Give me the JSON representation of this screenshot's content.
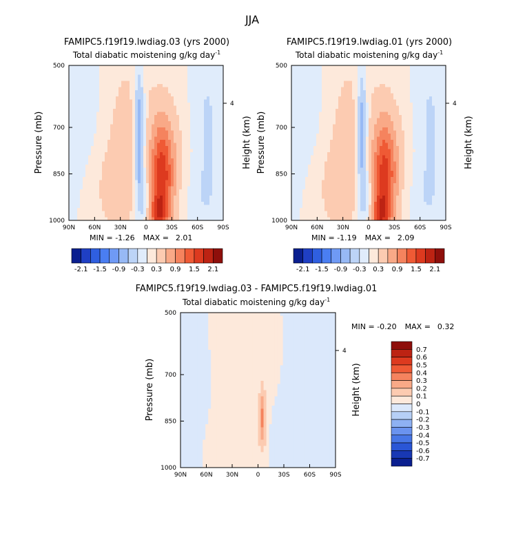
{
  "figure_title": "JJA",
  "colorbar_top": [
    "-2.1",
    "-1.5",
    "-0.9",
    "-0.3",
    "0.3",
    "0.9",
    "1.5",
    "2.1"
  ],
  "colorbar_diff": [
    "0.7",
    "0.6",
    "0.5",
    "0.4",
    "0.3",
    "0.2",
    "0.1",
    "0",
    "-0.1",
    "-0.2",
    "-0.3",
    "-0.4",
    "-0.5",
    "-0.6",
    "-0.7"
  ],
  "colors": {
    "top_scale": [
      "#0a1f8f",
      "#1f3fc4",
      "#2f5fe0",
      "#4a7ef2",
      "#6f9af5",
      "#97b9f5",
      "#bcd4f7",
      "#e0ecfb",
      "#fde9db",
      "#fccbb1",
      "#f9a987",
      "#f5835e",
      "#ef5a35",
      "#dd3a1f",
      "#bd2313",
      "#8e0f0b"
    ],
    "diff_scale": [
      "#8e0f0b",
      "#bd2313",
      "#dd3a1f",
      "#ef5a35",
      "#f5835e",
      "#f9a987",
      "#fccbb1",
      "#fde9db",
      "#dbe8fb",
      "#b6cff6",
      "#8eb1f3",
      "#6a93ef",
      "#4776e6",
      "#2a56d6",
      "#1838b4",
      "#0a1f8f"
    ]
  },
  "chart_data": [
    {
      "type": "heatmap",
      "title": "FAMIPC5.f19f19.lwdiag.03 (yrs 2000)",
      "subtitle_left": "Total diabatic moistening",
      "subtitle_right": "g/kg day",
      "subtitle_sup": "-1",
      "xlabel": "",
      "ylabel": "Pressure (mb)",
      "ylabel_right": "Height (km)",
      "x_ticks": [
        "90N",
        "60N",
        "30N",
        "0",
        "30S",
        "60S",
        "90S"
      ],
      "x_range": [
        90,
        -90
      ],
      "y_ticks": [
        "500",
        "700",
        "850",
        "1000"
      ],
      "y_range": [
        500,
        1000
      ],
      "right_ticks": [
        "4"
      ],
      "min_label": "MIN =",
      "min_value": "-1.26",
      "max_label": "MAX =",
      "max_value": "2.01",
      "blobs": [
        {
          "lat": 8,
          "p": 720,
          "slat": 4.5,
          "sp": 150,
          "v": -1.26
        },
        {
          "lat": 4,
          "p": 930,
          "slat": 5,
          "sp": 60,
          "v": -0.5
        },
        {
          "lat": -18,
          "p": 860,
          "slat": 9,
          "sp": 120,
          "v": 1.3
        },
        {
          "lat": -14,
          "p": 985,
          "slat": 7,
          "sp": 45,
          "v": 0.9
        },
        {
          "lat": -30,
          "p": 880,
          "slat": 18,
          "sp": 150,
          "v": 0.5
        },
        {
          "lat": 25,
          "p": 780,
          "slat": 18,
          "sp": 220,
          "v": 0.45
        },
        {
          "lat": 45,
          "p": 900,
          "slat": 15,
          "sp": 100,
          "v": 0.25
        },
        {
          "lat": -15,
          "p": 620,
          "slat": 25,
          "sp": 140,
          "v": 0.2
        },
        {
          "lat": -70,
          "p": 700,
          "slat": 15,
          "sp": 250,
          "v": -0.35
        },
        {
          "lat": -52,
          "p": 930,
          "slat": 20,
          "sp": 80,
          "v": -0.2
        },
        {
          "lat": 75,
          "p": 640,
          "slat": 20,
          "sp": 160,
          "v": -0.15
        }
      ]
    },
    {
      "type": "heatmap",
      "title": "FAMIPC5.f19f19.lwdiag.01 (yrs 2000)",
      "subtitle_left": "Total diabatic moistening",
      "subtitle_right": "g/kg day",
      "subtitle_sup": "-1",
      "xlabel": "",
      "ylabel": "Pressure (mb)",
      "ylabel_right": "Height (km)",
      "x_ticks": [
        "90N",
        "60N",
        "30N",
        "0",
        "30S",
        "60S",
        "90S"
      ],
      "x_range": [
        90,
        -90
      ],
      "y_ticks": [
        "500",
        "700",
        "850",
        "1000"
      ],
      "y_range": [
        500,
        1000
      ],
      "right_ticks": [
        "4"
      ],
      "min_label": "MIN =",
      "min_value": "-1.19",
      "max_label": "MAX =",
      "max_value": "2.09",
      "blobs": [
        {
          "lat": 8,
          "p": 720,
          "slat": 4.5,
          "sp": 150,
          "v": -1.19
        },
        {
          "lat": 4,
          "p": 930,
          "slat": 5,
          "sp": 60,
          "v": -0.5
        },
        {
          "lat": -18,
          "p": 860,
          "slat": 9,
          "sp": 120,
          "v": 1.25
        },
        {
          "lat": -14,
          "p": 985,
          "slat": 7,
          "sp": 45,
          "v": 1.0
        },
        {
          "lat": -30,
          "p": 880,
          "slat": 18,
          "sp": 150,
          "v": 0.5
        },
        {
          "lat": 25,
          "p": 780,
          "slat": 18,
          "sp": 220,
          "v": 0.45
        },
        {
          "lat": 45,
          "p": 900,
          "slat": 15,
          "sp": 100,
          "v": 0.25
        },
        {
          "lat": -15,
          "p": 620,
          "slat": 25,
          "sp": 140,
          "v": 0.2
        },
        {
          "lat": -70,
          "p": 700,
          "slat": 15,
          "sp": 250,
          "v": -0.35
        },
        {
          "lat": -52,
          "p": 930,
          "slat": 20,
          "sp": 80,
          "v": -0.2
        },
        {
          "lat": 75,
          "p": 640,
          "slat": 20,
          "sp": 160,
          "v": -0.15
        }
      ]
    },
    {
      "type": "heatmap",
      "title": "FAMIPC5.f19f19.lwdiag.03 - FAMIPC5.f19f19.lwdiag.01",
      "subtitle_left": "Total diabatic moistening",
      "subtitle_right": "g/kg day",
      "subtitle_sup": "-1",
      "xlabel": "",
      "ylabel": "Pressure (mb)",
      "ylabel_right": "Height (km)",
      "x_ticks": [
        "90N",
        "60N",
        "30N",
        "0",
        "30S",
        "60S",
        "90S"
      ],
      "x_range": [
        90,
        -90
      ],
      "y_ticks": [
        "500",
        "700",
        "850",
        "1000"
      ],
      "y_range": [
        500,
        1000
      ],
      "right_ticks": [
        "4"
      ],
      "min_label": "MIN =",
      "min_value": "-0.20",
      "max_label": "MAX =",
      "max_value": "0.32",
      "blobs": [
        {
          "lat": -5,
          "p": 840,
          "slat": 3,
          "sp": 70,
          "v": 0.32
        },
        {
          "lat": 15,
          "p": 560,
          "slat": 22,
          "sp": 90,
          "v": 0.06
        },
        {
          "lat": -20,
          "p": 640,
          "slat": 10,
          "sp": 100,
          "v": 0.05
        },
        {
          "lat": 40,
          "p": 800,
          "slat": 10,
          "sp": 220,
          "v": 0.05
        },
        {
          "lat": 70,
          "p": 760,
          "slat": 10,
          "sp": 200,
          "v": -0.06
        },
        {
          "lat": -35,
          "p": 760,
          "slat": 10,
          "sp": 220,
          "v": -0.06
        },
        {
          "lat": -70,
          "p": 600,
          "slat": 14,
          "sp": 160,
          "v": -0.05
        },
        {
          "lat": -60,
          "p": 900,
          "slat": 10,
          "sp": 80,
          "v": -0.04
        },
        {
          "lat": 55,
          "p": 930,
          "slat": 12,
          "sp": 70,
          "v": 0.04
        },
        {
          "lat": 10,
          "p": 950,
          "slat": 10,
          "sp": 60,
          "v": 0.05
        }
      ]
    }
  ]
}
